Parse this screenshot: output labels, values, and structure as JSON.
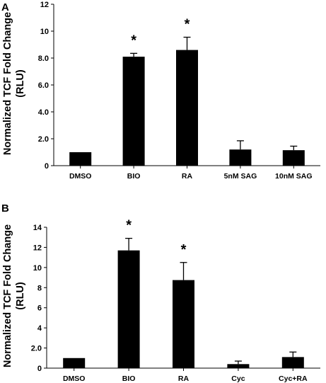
{
  "chart_data": [
    {
      "type": "bar",
      "panel_label": "A",
      "ylabel_line1": "Normalized TCF Fold Change",
      "ylabel_line2": "(RLU)",
      "ylim": [
        0,
        12
      ],
      "yticks": [
        "0",
        "2.0",
        "4.0",
        "6.0",
        "8.0",
        "10",
        "12"
      ],
      "ytick_values": [
        0,
        2,
        4,
        6,
        8,
        10,
        12
      ],
      "categories": [
        "DMSO",
        "BIO",
        "RA",
        "5nM SAG",
        "10nM SAG"
      ],
      "values": [
        1.0,
        8.1,
        8.6,
        1.2,
        1.15
      ],
      "errors": [
        0.0,
        0.25,
        0.95,
        0.65,
        0.3
      ],
      "significant": [
        "",
        "*",
        "*",
        "",
        ""
      ],
      "grid": false
    },
    {
      "type": "bar",
      "panel_label": "B",
      "ylabel_line1": "Normalized TCF Fold Change",
      "ylabel_line2": "(RLU)",
      "ylim": [
        0,
        14
      ],
      "yticks": [
        "0",
        "2.0",
        "4",
        "6",
        "8",
        "10",
        "12",
        "14"
      ],
      "ytick_values": [
        0,
        2,
        4,
        6,
        8,
        10,
        12,
        14
      ],
      "categories": [
        "DMSO",
        "BIO",
        "RA",
        "Cyc",
        "Cyc+RA"
      ],
      "values": [
        1.0,
        11.7,
        8.75,
        0.4,
        1.1
      ],
      "errors": [
        0.0,
        1.2,
        1.75,
        0.3,
        0.5
      ],
      "significant": [
        "",
        "*",
        "*",
        "",
        ""
      ],
      "grid": false
    }
  ]
}
